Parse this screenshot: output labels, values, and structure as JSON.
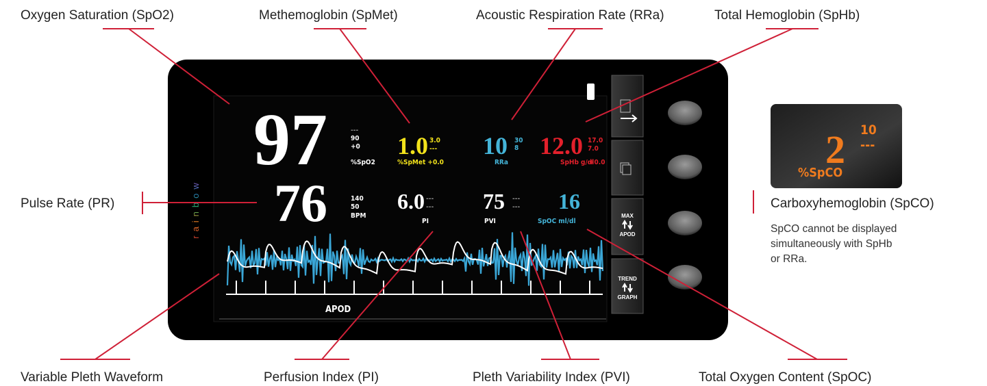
{
  "callouts": {
    "spo2": "Oxygen Saturation (SpO2)",
    "spmet": "Methemoglobin (SpMet)",
    "rra": "Acoustic Respiration Rate (RRa)",
    "sphb": "Total Hemoglobin (SpHb)",
    "pr": "Pulse Rate (PR)",
    "spco": "Carboxyhemoglobin (SpCO)",
    "pleth": "Variable Pleth Waveform",
    "pi": "Perfusion Index (PI)",
    "pvi": "Pleth Variability Index (PVI)",
    "spoc": "Total Oxygen Content (SpOC)"
  },
  "note": {
    "lines": [
      "SpCO cannot be displayed",
      "simultaneously with SpHb",
      "or RRa."
    ]
  },
  "screen": {
    "brand": "rainbow",
    "spo2": {
      "value": "97",
      "limits": [
        "---",
        "90",
        "+0"
      ],
      "unit": "%SpO2"
    },
    "spmet": {
      "value": "1.0",
      "limits": [
        "3.0",
        "---"
      ],
      "unit": "%SpMet +0.0"
    },
    "rra": {
      "value": "10",
      "limits": [
        "30",
        "8"
      ],
      "unit": "RRa"
    },
    "sphb": {
      "value": "12.0",
      "limits": [
        "17.0",
        "7.0"
      ],
      "unit": "SpHb g/dl",
      "offset": "+0.0"
    },
    "pr": {
      "value": "76",
      "limits": [
        "140",
        "50"
      ],
      "unit": "BPM"
    },
    "pi": {
      "value": "6.0",
      "limits": [
        "---",
        "---"
      ],
      "unit": "PI"
    },
    "pvi": {
      "value": "75",
      "limits": [
        "---",
        "---"
      ],
      "unit": "PVI"
    },
    "spoc": {
      "value": "16",
      "unit": "SpOC ml/dl"
    },
    "mode": "APOD",
    "buttons": [
      {
        "top": "MAX",
        "bottom": "APOD"
      },
      {
        "top": "TREND",
        "bottom": "GRAPH"
      }
    ]
  },
  "inset": {
    "value": "2",
    "limits": [
      "10",
      "---"
    ],
    "unit": "%SpCO"
  }
}
